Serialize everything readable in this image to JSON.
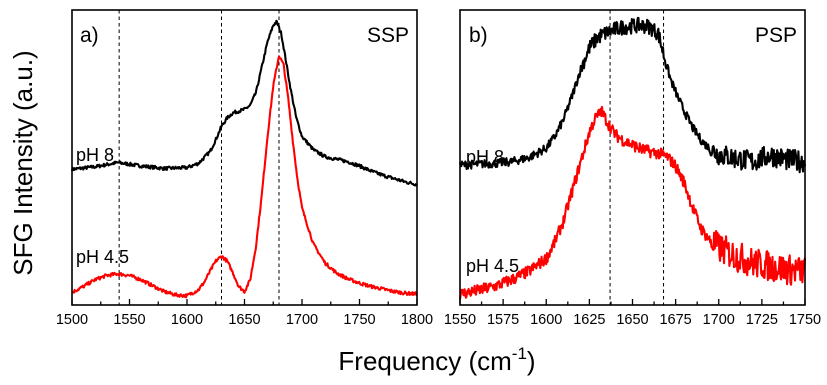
{
  "figure": {
    "ylabel": "SFG Intensity (a.u.)",
    "xlabel_main": "Frequency (cm",
    "xlabel_sup": "-1",
    "xlabel_end": ")"
  },
  "colors": {
    "ph8": "#000000",
    "ph45": "#ff0000"
  },
  "chart_data": [
    {
      "type": "line",
      "panel": "a)",
      "title": "SSP",
      "xlim": [
        1500,
        1800
      ],
      "ylim": [
        -0.1,
        3.4
      ],
      "xticks": [
        "1500",
        "1550",
        "1600",
        "1650",
        "1700",
        "1750",
        "1800"
      ],
      "reference_lines": [
        1541,
        1630,
        1680
      ],
      "series": [
        {
          "name": "pH 8",
          "color": "#000000",
          "x": [
            1500,
            1520,
            1540,
            1560,
            1580,
            1600,
            1610,
            1620,
            1625,
            1630,
            1635,
            1640,
            1645,
            1650,
            1655,
            1660,
            1665,
            1670,
            1675,
            1678,
            1682,
            1686,
            1690,
            1695,
            1700,
            1710,
            1720,
            1730,
            1740,
            1750,
            1760,
            1770,
            1780,
            1790,
            1800
          ],
          "y": [
            1.51,
            1.54,
            1.59,
            1.55,
            1.52,
            1.53,
            1.58,
            1.72,
            1.86,
            2.02,
            2.12,
            2.18,
            2.2,
            2.22,
            2.27,
            2.42,
            2.72,
            3.02,
            3.22,
            3.26,
            3.12,
            2.8,
            2.47,
            2.12,
            1.9,
            1.74,
            1.66,
            1.63,
            1.6,
            1.55,
            1.49,
            1.44,
            1.4,
            1.36,
            1.33
          ]
        },
        {
          "name": "pH 4.5",
          "color": "#ff0000",
          "x": [
            1500,
            1510,
            1520,
            1530,
            1540,
            1550,
            1560,
            1570,
            1580,
            1590,
            1600,
            1610,
            1615,
            1620,
            1625,
            1630,
            1635,
            1640,
            1645,
            1650,
            1655,
            1660,
            1665,
            1670,
            1675,
            1680,
            1684,
            1688,
            1692,
            1696,
            1700,
            1710,
            1720,
            1730,
            1740,
            1750,
            1760,
            1770,
            1780,
            1790,
            1800
          ],
          "y": [
            0.05,
            0.12,
            0.2,
            0.25,
            0.27,
            0.25,
            0.2,
            0.13,
            0.06,
            0.02,
            0.01,
            0.08,
            0.17,
            0.3,
            0.42,
            0.48,
            0.42,
            0.28,
            0.12,
            0.06,
            0.2,
            0.6,
            1.2,
            1.9,
            2.5,
            2.86,
            2.75,
            2.35,
            1.85,
            1.4,
            1.05,
            0.62,
            0.4,
            0.28,
            0.21,
            0.16,
            0.12,
            0.09,
            0.06,
            0.04,
            0.03
          ]
        }
      ]
    },
    {
      "type": "line",
      "panel": "b)",
      "title": "PSP",
      "xlim": [
        1550,
        1750
      ],
      "ylim": [
        -0.1,
        3.4
      ],
      "xticks": [
        "1550",
        "1575",
        "1600",
        "1625",
        "1650",
        "1675",
        "1700",
        "1725",
        "1750"
      ],
      "reference_lines": [
        1637,
        1668
      ],
      "series": [
        {
          "name": "pH 8",
          "color": "#000000",
          "x": [
            1550,
            1560,
            1570,
            1580,
            1590,
            1600,
            1605,
            1610,
            1615,
            1620,
            1625,
            1630,
            1635,
            1640,
            1645,
            1650,
            1655,
            1660,
            1665,
            1668,
            1672,
            1676,
            1680,
            1685,
            1690,
            1695,
            1700,
            1710,
            1720,
            1730,
            1740,
            1750
          ],
          "y": [
            1.56,
            1.57,
            1.58,
            1.6,
            1.65,
            1.76,
            1.9,
            2.1,
            2.38,
            2.7,
            2.95,
            3.08,
            3.13,
            3.17,
            3.2,
            3.21,
            3.22,
            3.2,
            3.12,
            2.88,
            2.58,
            2.38,
            2.2,
            2.0,
            1.85,
            1.75,
            1.69,
            1.64,
            1.6,
            1.68,
            1.62,
            1.6
          ]
        },
        {
          "name": "pH 4.5",
          "color": "#ff0000",
          "x": [
            1550,
            1560,
            1570,
            1580,
            1590,
            1600,
            1605,
            1610,
            1615,
            1620,
            1625,
            1628,
            1632,
            1636,
            1640,
            1645,
            1650,
            1655,
            1660,
            1665,
            1670,
            1675,
            1680,
            1685,
            1690,
            1695,
            1700,
            1710,
            1720,
            1730,
            1740,
            1750
          ],
          "y": [
            0.03,
            0.07,
            0.12,
            0.2,
            0.3,
            0.45,
            0.65,
            0.9,
            1.25,
            1.6,
            1.95,
            2.1,
            2.2,
            2.05,
            1.92,
            1.85,
            1.8,
            1.75,
            1.72,
            1.7,
            1.66,
            1.55,
            1.35,
            1.05,
            0.8,
            0.66,
            0.58,
            0.48,
            0.4,
            0.36,
            0.32,
            0.3
          ]
        }
      ]
    }
  ]
}
